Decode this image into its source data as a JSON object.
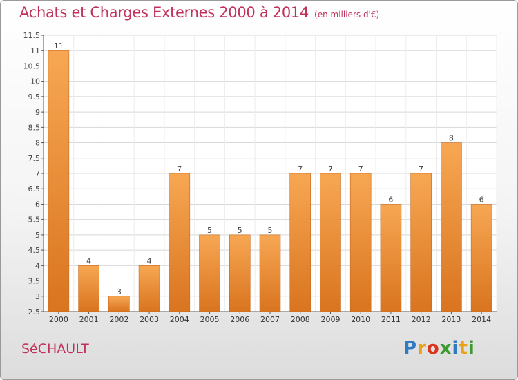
{
  "header": {
    "title": "Achats et Charges Externes 2000 à 2014",
    "subtitle": "(en milliers d'€)"
  },
  "footer": {
    "commune": "SéCHAULT",
    "brand": "Proxiti",
    "brand_letters": [
      {
        "ch": "P",
        "color": "#2e7bc4"
      },
      {
        "ch": "r",
        "color": "#e8a21a"
      },
      {
        "ch": "o",
        "color": "#d9341f"
      },
      {
        "ch": "x",
        "color": "#3c9a2e"
      },
      {
        "ch": "i",
        "color": "#2e7bc4"
      },
      {
        "ch": "t",
        "color": "#e8a21a"
      },
      {
        "ch": "i",
        "color": "#3c9a2e"
      }
    ]
  },
  "chart_data": {
    "type": "bar",
    "title": "Achats et Charges Externes 2000 à 2014",
    "subtitle": "(en milliers d'€)",
    "categories": [
      "2000",
      "2001",
      "2002",
      "2003",
      "2004",
      "2005",
      "2006",
      "2007",
      "2008",
      "2009",
      "2010",
      "2011",
      "2012",
      "2013",
      "2014"
    ],
    "values": [
      11,
      4,
      3,
      4,
      7,
      5,
      5,
      5,
      7,
      7,
      7,
      6,
      7,
      8,
      6
    ],
    "data_labels": [
      "11",
      "4",
      "3",
      "4",
      "7",
      "5",
      "5",
      "5",
      "7",
      "7",
      "7",
      "6",
      "7",
      "8",
      "6"
    ],
    "ylim": [
      2.5,
      11.5
    ],
    "yticks": [
      "2.5",
      "3",
      "3.5",
      "4",
      "4.5",
      "5",
      "5.5",
      "6",
      "6.5",
      "7",
      "7.5",
      "8",
      "8.5",
      "9",
      "9.5",
      "10",
      "10.5",
      "11",
      "11.5"
    ],
    "grid": true,
    "colors": {
      "bar_light": "#f7a753",
      "bar_dark": "#d9741f",
      "title": "#c0325a",
      "grid": "#d8d8d8"
    }
  }
}
